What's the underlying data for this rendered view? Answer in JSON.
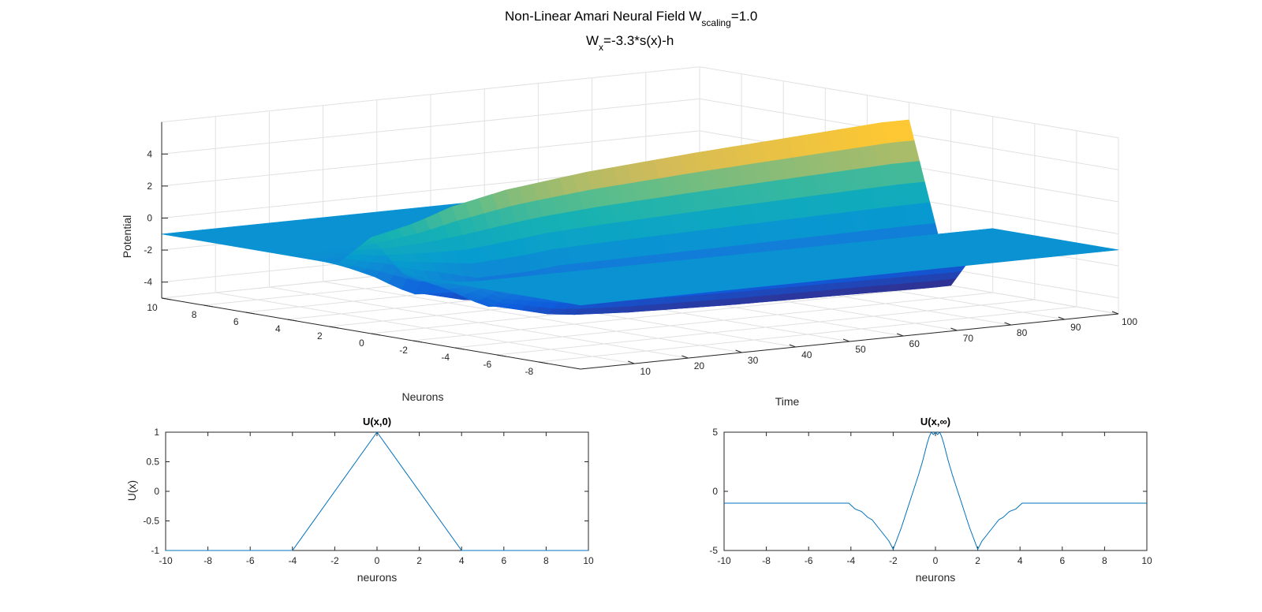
{
  "figure": {
    "title_line1_main": "Non-Linear Amari Neural Field W",
    "title_line1_sub": "scaling",
    "title_line1_tail": "=1.0",
    "title_line2_main": "W",
    "title_line2_sub": "x",
    "title_line2_tail": "=-3.3*s(x)-h"
  },
  "chart_data": [
    {
      "type": "surface",
      "xlabel": "Time",
      "ylabel": "Neurons",
      "zlabel": "Potential",
      "xlim": [
        0,
        100
      ],
      "ylim": [
        -10,
        10
      ],
      "zlim": [
        -5,
        5
      ],
      "x_ticks": [
        10,
        20,
        30,
        40,
        50,
        60,
        70,
        80,
        90,
        100
      ],
      "y_ticks": [
        -8,
        -6,
        -4,
        -2,
        0,
        2,
        4,
        6,
        8,
        10
      ],
      "z_ticks": [
        -4,
        -2,
        0,
        2,
        4
      ],
      "baseline_potential": -1,
      "colormap": "parula",
      "grid": true,
      "profile_peak_by_time": [
        [
          0,
          1
        ],
        [
          8,
          1.6
        ],
        [
          15,
          2.4
        ],
        [
          25,
          3.1
        ],
        [
          40,
          3.7
        ],
        [
          60,
          4.2
        ],
        [
          80,
          4.6
        ],
        [
          95,
          4.9
        ],
        [
          100,
          4.9
        ]
      ],
      "profile_trough_by_time": [
        [
          0,
          -1
        ],
        [
          8,
          -2.2
        ],
        [
          15,
          -3.6
        ],
        [
          25,
          -4.3
        ],
        [
          40,
          -4.6
        ],
        [
          60,
          -4.8
        ],
        [
          80,
          -4.9
        ],
        [
          95,
          -5
        ],
        [
          100,
          -5
        ]
      ]
    },
    {
      "type": "line",
      "title": "U(x,0)",
      "xlabel": "neurons",
      "ylabel": "U(x)",
      "xlim": [
        -10,
        10
      ],
      "ylim": [
        -1,
        1
      ],
      "x_ticks": [
        -10,
        -8,
        -6,
        -4,
        -2,
        0,
        2,
        4,
        6,
        8,
        10
      ],
      "y_ticks": [
        -1,
        -0.5,
        0,
        0.5,
        1
      ],
      "color": "#0072BD",
      "x": [
        -10,
        -4,
        0,
        4,
        10
      ],
      "y": [
        -1,
        -1,
        1,
        -1,
        -1
      ]
    },
    {
      "type": "line",
      "title": "U(x,∞)",
      "xlabel": "neurons",
      "ylabel": "",
      "xlim": [
        -10,
        10
      ],
      "ylim": [
        -5,
        5
      ],
      "x_ticks": [
        -10,
        -8,
        -6,
        -4,
        -2,
        0,
        2,
        4,
        6,
        8,
        10
      ],
      "y_ticks": [
        -5,
        0,
        5
      ],
      "color": "#0072BD",
      "x": [
        -10,
        -4.1,
        -3.8,
        -3.5,
        -3.2,
        -3.0,
        -2.6,
        -2.2,
        -2.0,
        -1.6,
        -1.2,
        -0.8,
        -0.6,
        -0.4,
        -0.3,
        -0.2,
        -0.1,
        0,
        0.1,
        0.2,
        0.3,
        0.4,
        0.6,
        0.8,
        1.2,
        1.6,
        2.0,
        2.2,
        2.6,
        3.0,
        3.2,
        3.5,
        3.8,
        4.1,
        10
      ],
      "y": [
        -1,
        -1,
        -1.5,
        -1.7,
        -2.2,
        -2.4,
        -3.3,
        -4.2,
        -4.9,
        -3.0,
        -0.8,
        1.4,
        2.6,
        4.0,
        4.6,
        5.0,
        4.8,
        5.0,
        4.8,
        5.0,
        4.6,
        4.0,
        2.6,
        1.4,
        -0.8,
        -3.0,
        -4.9,
        -4.2,
        -3.3,
        -2.4,
        -2.2,
        -1.7,
        -1.5,
        -1,
        -1
      ]
    }
  ]
}
